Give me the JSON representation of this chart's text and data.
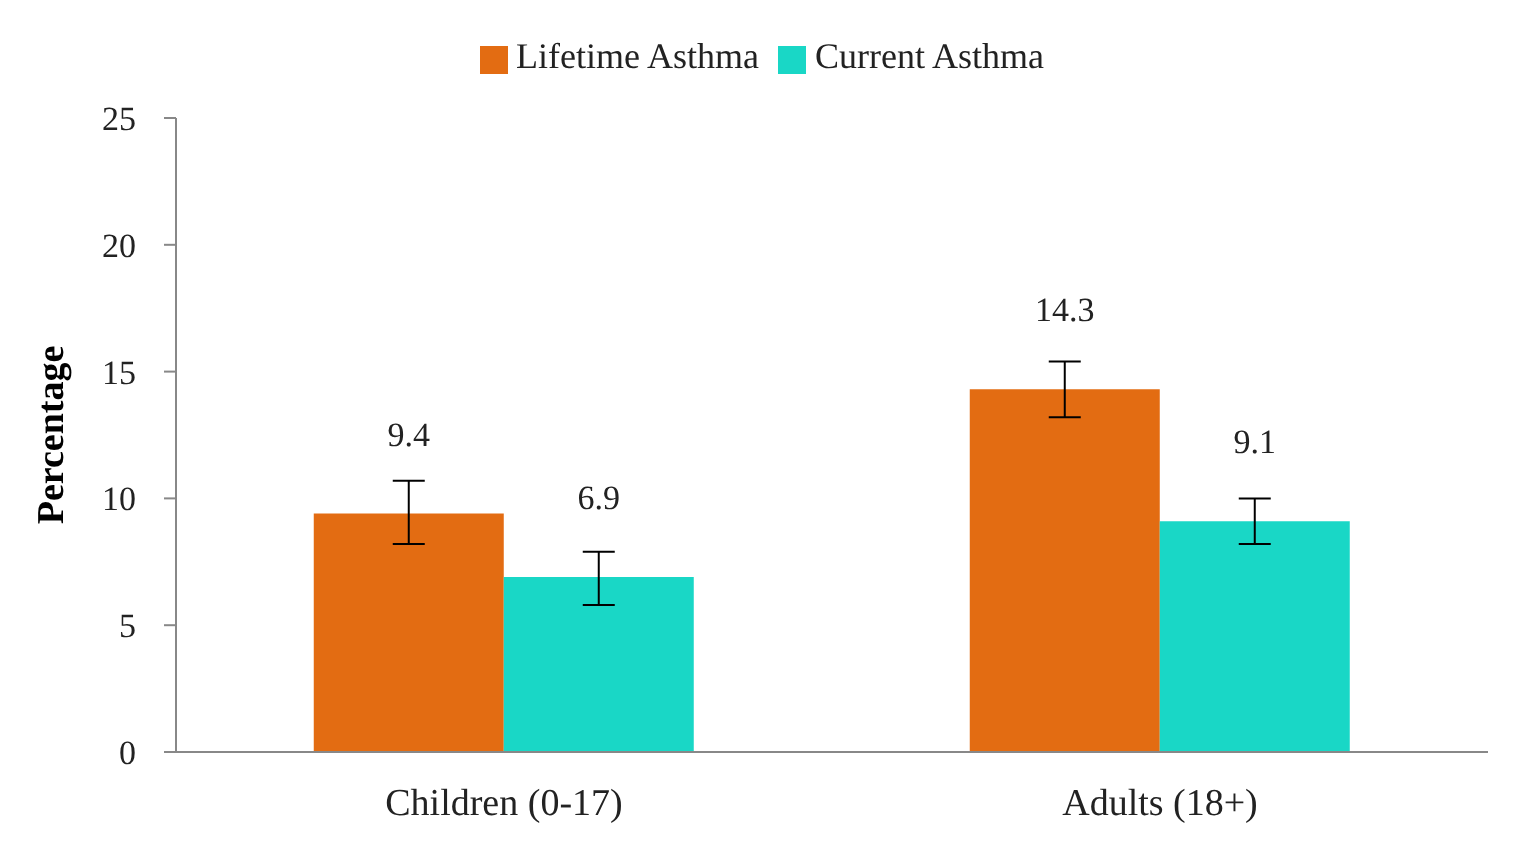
{
  "chart_data": {
    "type": "bar",
    "ylabel": "Percentage",
    "categories": [
      "Children (0-17)",
      "Adults (18+)"
    ],
    "series": [
      {
        "name": "Lifetime Asthma",
        "color": "#e36c12",
        "values": [
          9.4,
          14.3
        ],
        "errors": [
          [
            8.2,
            10.7
          ],
          [
            13.2,
            15.4
          ]
        ]
      },
      {
        "name": "Current Asthma",
        "color": "#19d7c6",
        "values": [
          6.9,
          9.1
        ],
        "errors": [
          [
            5.8,
            7.9
          ],
          [
            8.2,
            10.0
          ]
        ]
      }
    ],
    "ylim": [
      0,
      25
    ],
    "yticks": [
      0,
      5,
      10,
      15,
      20,
      25
    ],
    "grid": false,
    "legend": "top",
    "data_labels": true
  }
}
